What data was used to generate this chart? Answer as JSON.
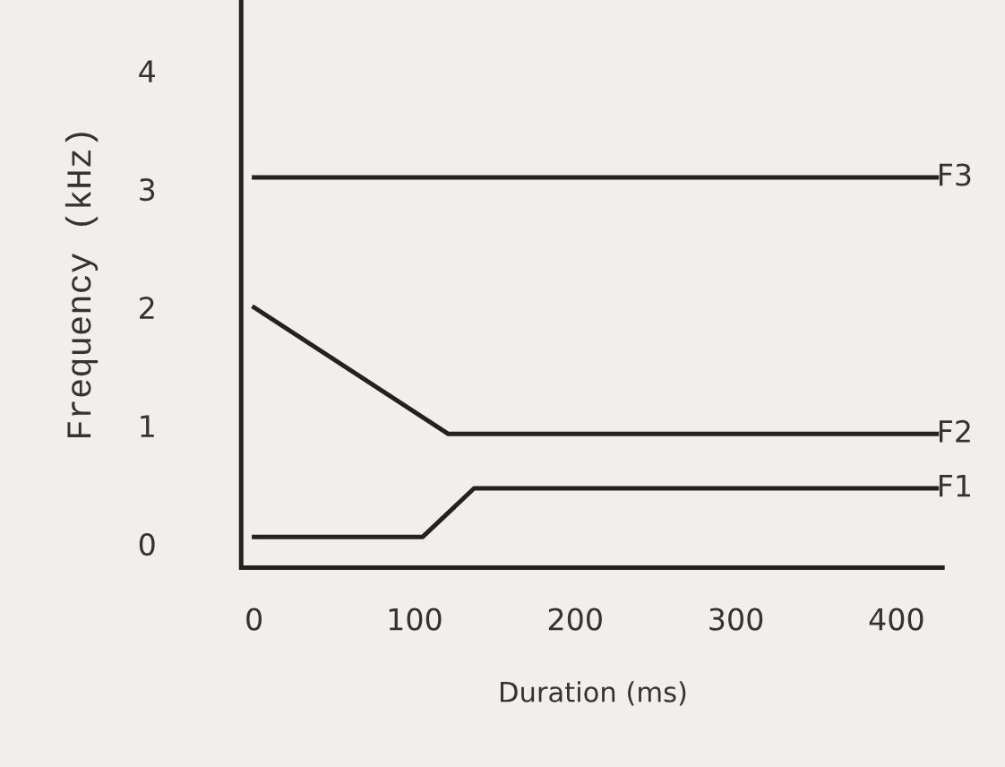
{
  "chart_data": {
    "type": "line",
    "xlabel": "Duration (ms)",
    "ylabel": "Frequency (kHz)",
    "series": [
      {
        "name": "F3",
        "color": "#222222",
        "x": [
          0,
          425
        ],
        "values": [
          3.1,
          3.1
        ]
      },
      {
        "name": "F2",
        "color": "#222222",
        "x": [
          0,
          121,
          425
        ],
        "values": [
          2.0,
          0.93,
          0.93
        ]
      },
      {
        "name": "F1",
        "color": "#222222",
        "x": [
          0,
          105,
          137,
          425
        ],
        "values": [
          0.06,
          0.06,
          0.47,
          0.47
        ]
      }
    ],
    "xlim": [
      -8,
      430
    ],
    "ylim": [
      -0.2,
      4.6
    ],
    "xticks": [
      0,
      100,
      200,
      300,
      400
    ],
    "yticks": [
      0,
      1,
      2,
      3,
      4
    ],
    "grid": false,
    "legend": false,
    "marker": "none",
    "line_style": "solid"
  }
}
